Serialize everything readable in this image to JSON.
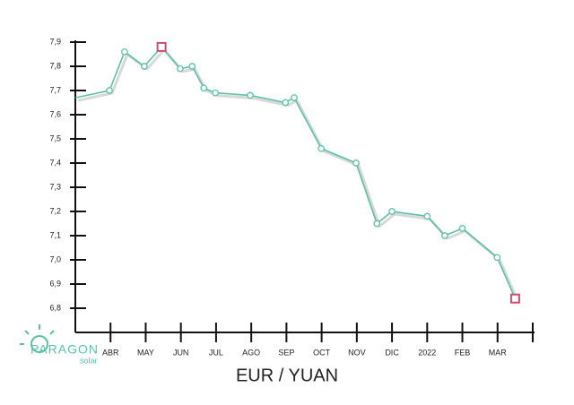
{
  "chart_data": {
    "type": "line",
    "title": "EUR / YUAN",
    "logo": {
      "name": "PARAGON",
      "tagline": "solar"
    },
    "x": [
      0,
      0.97,
      1.4,
      1.96,
      2.45,
      2.98,
      3.32,
      3.65,
      3.98,
      4.97,
      5.97,
      6.22,
      6.99,
      7.98,
      8.57,
      9.0,
      10.0,
      10.5,
      11.0,
      11.99,
      12.5
    ],
    "values": [
      7.67,
      7.7,
      7.86,
      7.8,
      7.88,
      7.79,
      7.8,
      7.71,
      7.69,
      7.68,
      7.65,
      7.67,
      7.46,
      7.4,
      7.15,
      7.2,
      7.18,
      7.1,
      7.13,
      7.01,
      6.84
    ],
    "markers": [
      "none",
      "circle",
      "circle",
      "circle",
      "square",
      "circle",
      "circle",
      "circle",
      "circle",
      "circle",
      "circle",
      "circle",
      "circle",
      "circle",
      "circle",
      "circle",
      "circle",
      "circle",
      "circle",
      "circle",
      "square"
    ],
    "color": "#5cbfa7",
    "highlight_color": "#c4506c",
    "xlim": [
      0,
      13
    ],
    "xticks": [
      {
        "value": 1,
        "label": "ABR"
      },
      {
        "value": 2,
        "label": "MAY"
      },
      {
        "value": 3,
        "label": "JUN"
      },
      {
        "value": 4,
        "label": "JUL"
      },
      {
        "value": 5,
        "label": "AGO"
      },
      {
        "value": 6,
        "label": "SEP"
      },
      {
        "value": 7,
        "label": "OCT"
      },
      {
        "value": 8,
        "label": "NOV"
      },
      {
        "value": 9,
        "label": "DIC"
      },
      {
        "value": 10,
        "label": "2022"
      },
      {
        "value": 11,
        "label": "FEB"
      },
      {
        "value": 12,
        "label": "MAR"
      }
    ],
    "ylim": [
      6.7,
      7.9
    ],
    "yticks": [
      {
        "value": 6.8,
        "label": "6,8"
      },
      {
        "value": 6.9,
        "label": "6,9"
      },
      {
        "value": 7.0,
        "label": "7,0"
      },
      {
        "value": 7.1,
        "label": "7,1"
      },
      {
        "value": 7.2,
        "label": "7,2"
      },
      {
        "value": 7.3,
        "label": "7,3"
      },
      {
        "value": 7.4,
        "label": "7,4"
      },
      {
        "value": 7.5,
        "label": "7,5"
      },
      {
        "value": 7.6,
        "label": "7,6"
      },
      {
        "value": 7.7,
        "label": "7,7"
      },
      {
        "value": 7.8,
        "label": "7,8"
      },
      {
        "value": 7.9,
        "label": "7,9"
      }
    ]
  }
}
